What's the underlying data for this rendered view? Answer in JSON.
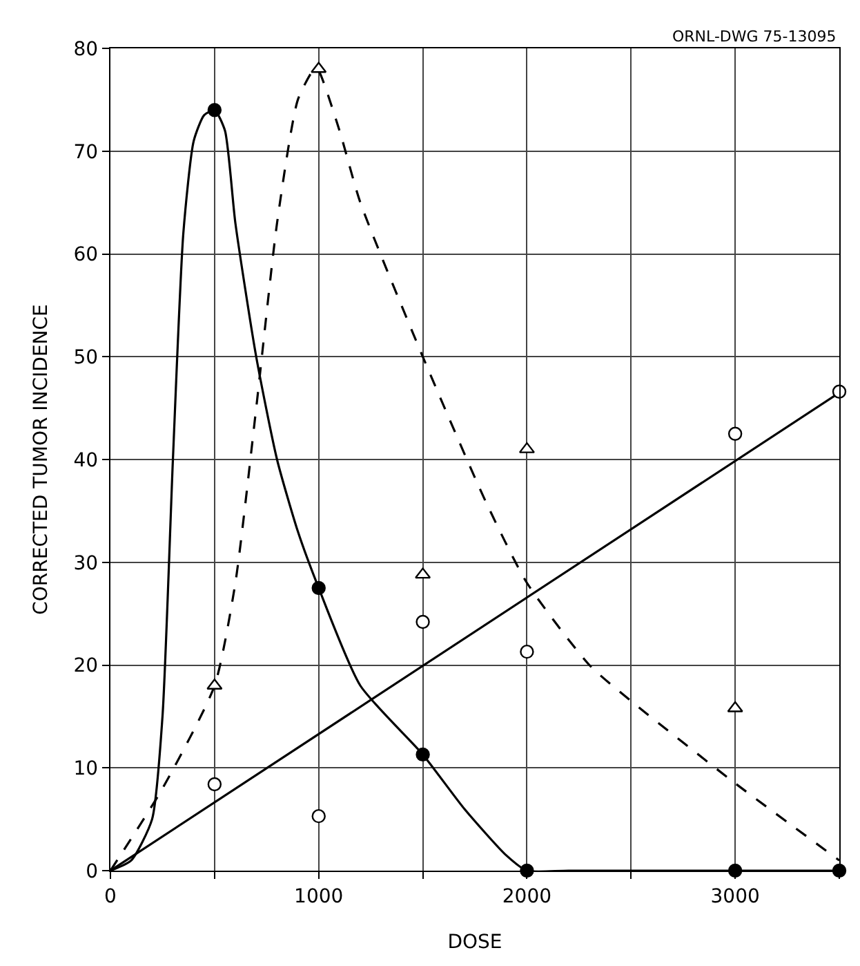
{
  "chart_data": {
    "type": "line",
    "xlabel": "DOSE",
    "ylabel": "CORRECTED TUMOR INCIDENCE",
    "annotations": [
      "ORNL-DWG 75-13095"
    ],
    "xlim": [
      0,
      3500
    ],
    "xticks": [
      0,
      {
        "value": 500,
        "label": null
      },
      1000,
      {
        "value": 1500,
        "label": null
      },
      2000,
      {
        "value": 2500,
        "label": null
      },
      3000,
      {
        "value": 3500,
        "label": null
      }
    ],
    "ylim": [
      0,
      80
    ],
    "yticks": [
      0,
      10,
      20,
      30,
      40,
      50,
      60,
      70,
      80
    ],
    "grid": true,
    "series": [
      {
        "line_style": "solid",
        "marker": "none",
        "color": "#000000",
        "x": [
          0,
          100,
          200,
          250,
          300,
          350,
          400,
          450,
          500,
          550,
          600,
          700,
          800,
          900,
          1000,
          1200,
          1500,
          1700,
          1900,
          2000,
          2200,
          3500
        ],
        "values": [
          0,
          1,
          5,
          15,
          40,
          62,
          71,
          73.5,
          74,
          72,
          63,
          50,
          40,
          33,
          27.5,
          18,
          11.3,
          6,
          1.5,
          0,
          0,
          0
        ]
      },
      {
        "type": "scatter",
        "marker": "circle",
        "color": "#000000",
        "x": [
          500,
          1000,
          1500,
          2000,
          3000,
          3500
        ],
        "values": [
          74,
          27.5,
          11.3,
          0,
          0,
          0
        ]
      },
      {
        "line_style": "dashed",
        "marker": "none",
        "color": "#000000",
        "x": [
          0,
          250,
          500,
          600,
          700,
          800,
          900,
          980,
          1000,
          1100,
          1200,
          1500,
          1800,
          2000,
          2300,
          2500,
          3000,
          3500
        ],
        "values": [
          0,
          8,
          18,
          28,
          45,
          63,
          75,
          78,
          77.8,
          72,
          65,
          50,
          36,
          28,
          20,
          16.5,
          8.5,
          1
        ]
      },
      {
        "type": "scatter",
        "marker": "triangle",
        "color": "#ffffff",
        "x": [
          500,
          1000,
          1500,
          2000,
          3000
        ],
        "values": [
          18,
          78,
          28.8,
          41,
          15.8
        ]
      },
      {
        "line_style": "solid",
        "marker": "none",
        "color": "#000000",
        "x": [
          0,
          3500
        ],
        "values": [
          0,
          46.5
        ]
      },
      {
        "type": "scatter",
        "marker": "circle",
        "color": "#ffffff",
        "x": [
          500,
          1000,
          1500,
          2000,
          3000,
          3500
        ],
        "values": [
          8.4,
          5.3,
          24.2,
          21.3,
          42.5,
          46.6
        ]
      }
    ]
  }
}
